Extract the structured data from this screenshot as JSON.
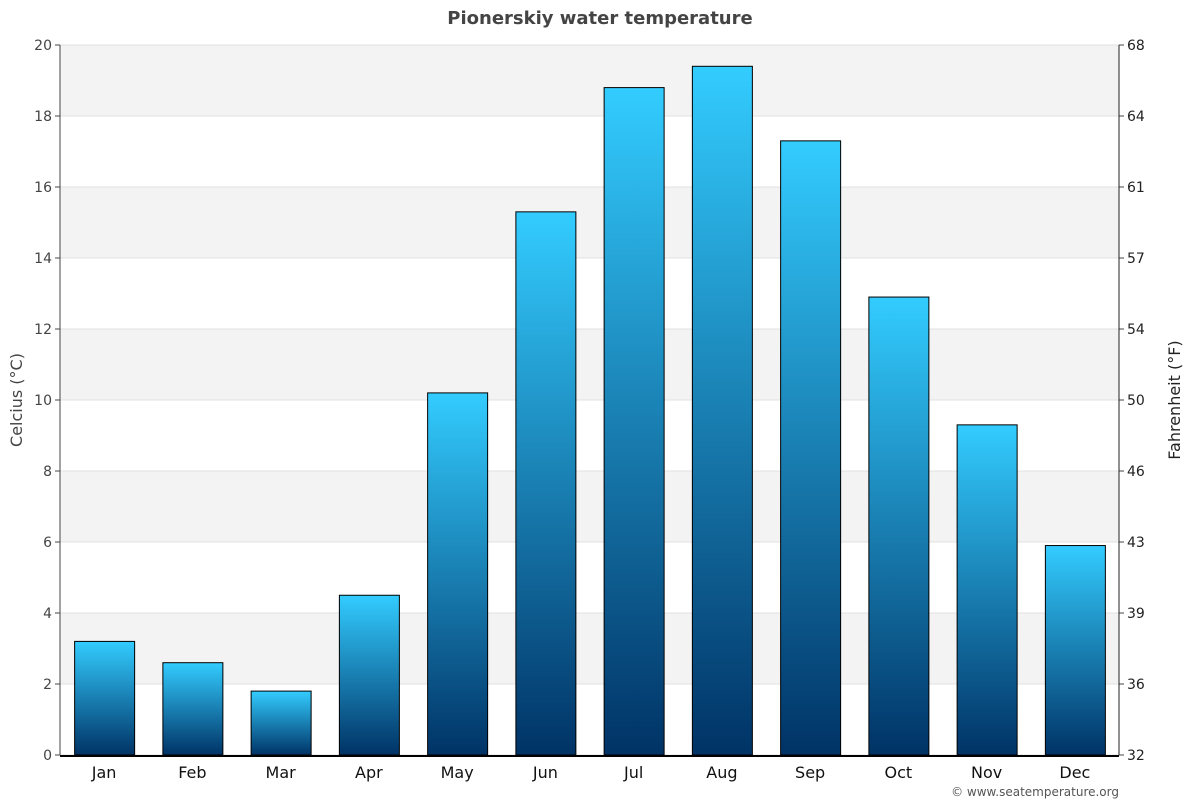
{
  "chart_data": {
    "type": "bar",
    "title": "Pionerskiy water temperature",
    "ylabel": "Celcius (°C)",
    "ylabel_right": "Fahrenheit (°F)",
    "categories": [
      "Jan",
      "Feb",
      "Mar",
      "Apr",
      "May",
      "Jun",
      "Jul",
      "Aug",
      "Sep",
      "Oct",
      "Nov",
      "Dec"
    ],
    "values": [
      3.2,
      2.6,
      1.8,
      4.5,
      10.2,
      15.3,
      18.8,
      19.4,
      17.3,
      12.9,
      9.3,
      5.9
    ],
    "ylim": [
      0,
      20
    ],
    "yticks": [
      "0",
      "2",
      "4",
      "6",
      "8",
      "10",
      "12",
      "14",
      "16",
      "18",
      "20"
    ],
    "yticks_right": [
      "32",
      "36",
      "39",
      "43",
      "46",
      "50",
      "54",
      "57",
      "61",
      "64",
      "68"
    ],
    "grid": true,
    "colors": {
      "bar_top": "#33ccff",
      "bar_bottom": "#003366",
      "band": "#f3f3f3"
    }
  },
  "credit": "© www.seatemperature.org"
}
